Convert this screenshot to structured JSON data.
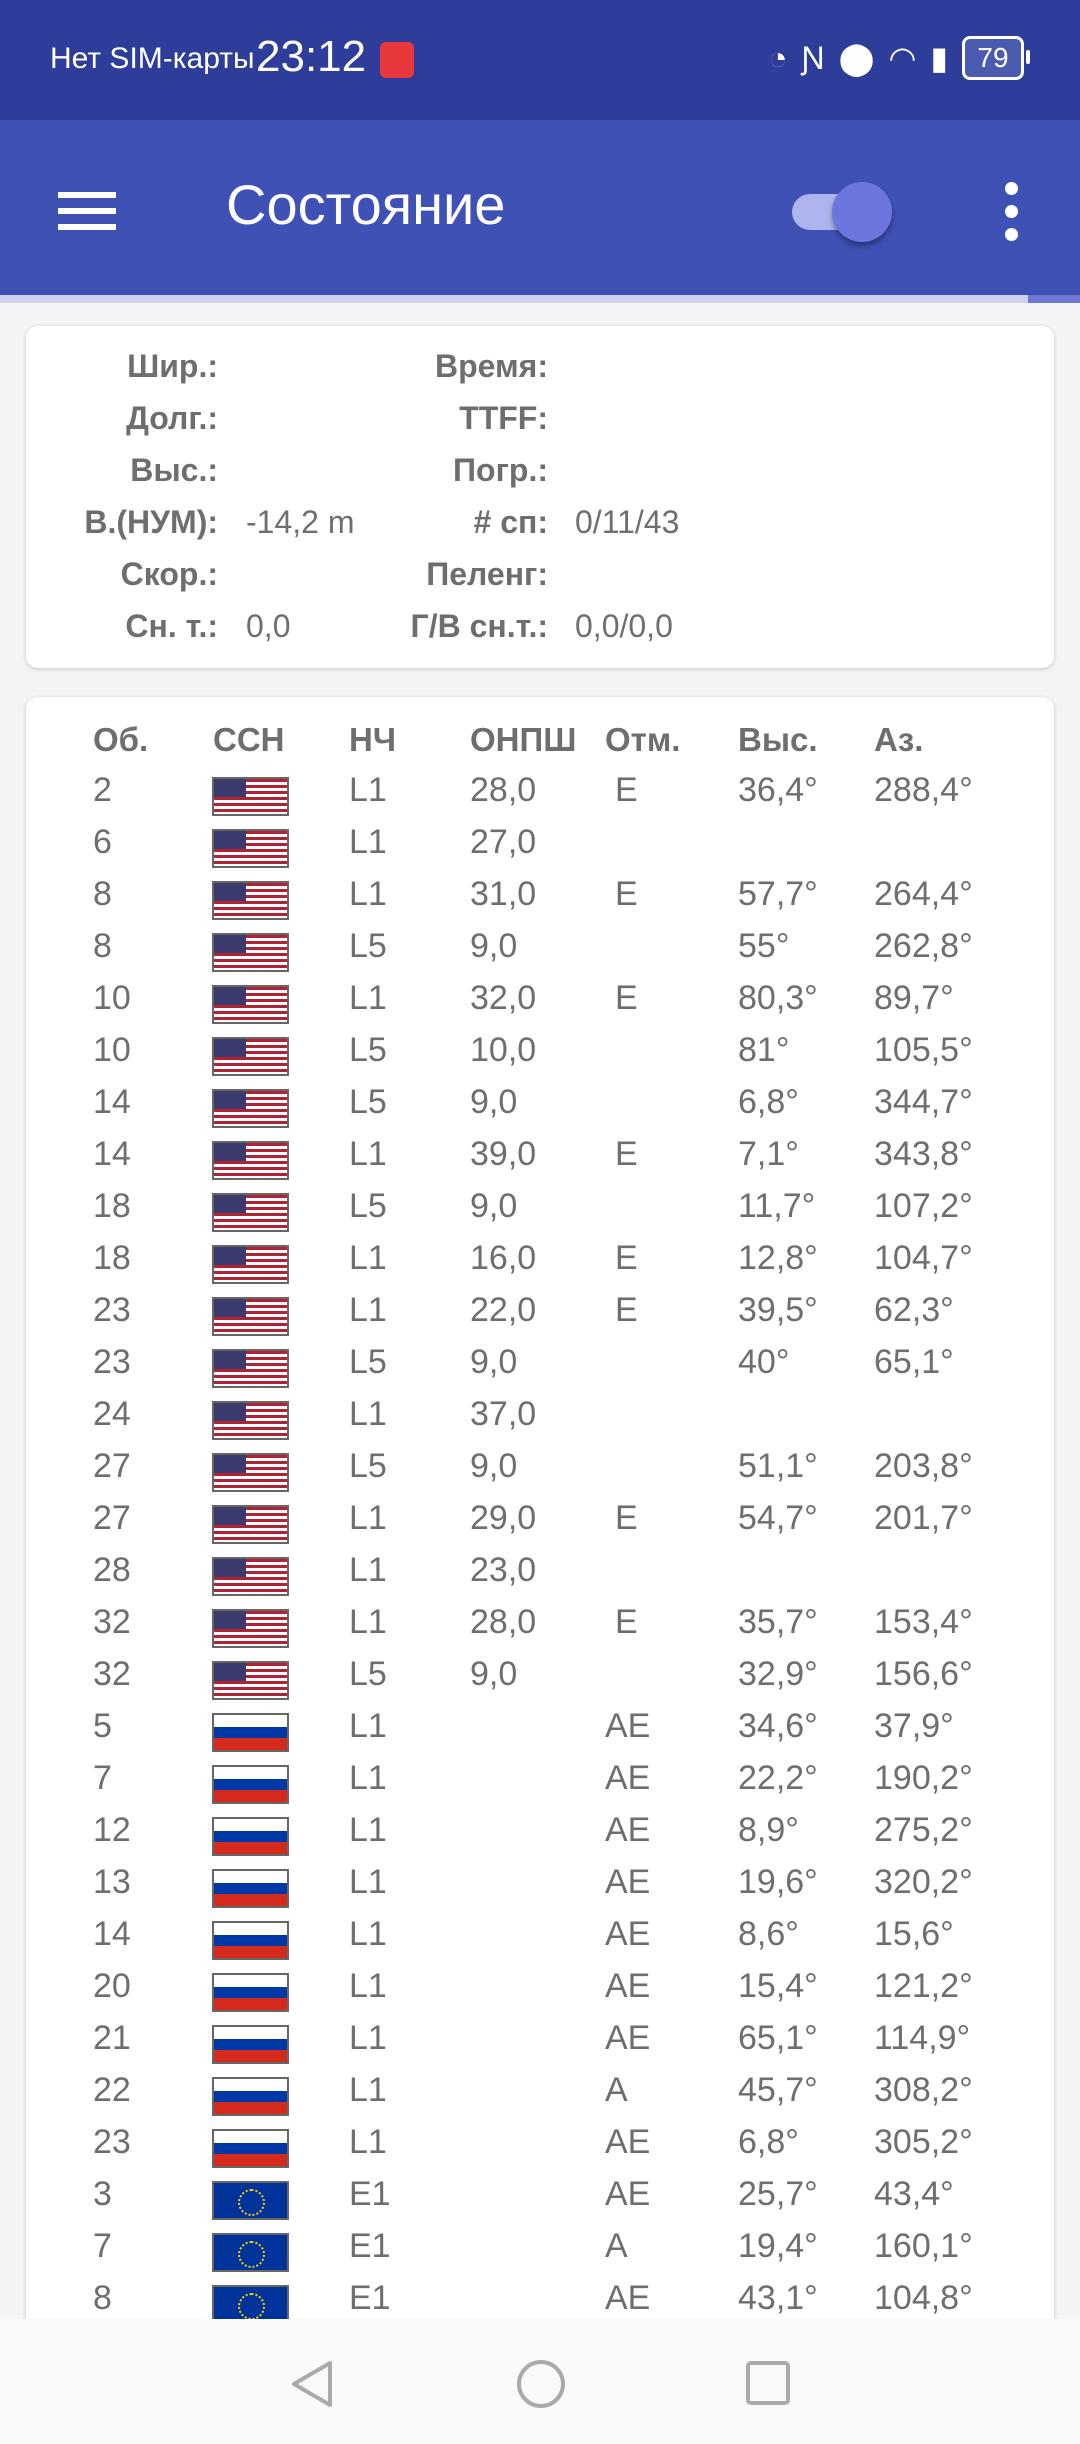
{
  "status_bar": {
    "carrier": "Нет SIM-карты",
    "time": "23:12",
    "battery": "79",
    "icons": [
      "huawei-app-icon",
      "speed-icon",
      "nfc-icon",
      "location-icon",
      "wifi-icon",
      "alert-icon",
      "battery-icon"
    ]
  },
  "toolbar": {
    "title": "Состояние",
    "toggle_on": true,
    "accent": "#3f51b5",
    "status_bar_color": "#2e3d9a"
  },
  "fix": {
    "left": [
      {
        "label": "Шир.:",
        "value": ""
      },
      {
        "label": "Долг.:",
        "value": ""
      },
      {
        "label": "Выс.:",
        "value": ""
      },
      {
        "label": "В.(НУМ):",
        "value": "-14,2 m"
      },
      {
        "label": "Скор.:",
        "value": ""
      },
      {
        "label": "Сн. т.:",
        "value": "0,0"
      }
    ],
    "right": [
      {
        "label": "Время:",
        "value": ""
      },
      {
        "label": "TTFF:",
        "value": ""
      },
      {
        "label": "Погр.:",
        "value": ""
      },
      {
        "label": "# сп:",
        "value": "0/11/43"
      },
      {
        "label": "Пеленг:",
        "value": ""
      },
      {
        "label": "Г/В сн.т.:",
        "value": "0,0/0,0"
      }
    ]
  },
  "table": {
    "headers": [
      "Об.",
      "ССН",
      "НЧ",
      "ОНПШ",
      "Отм.",
      "Выс.",
      "Аз."
    ],
    "rows": [
      [
        "2",
        "us",
        "L1",
        "28,0",
        "E",
        "36,4°",
        "288,4°"
      ],
      [
        "6",
        "us",
        "L1",
        "27,0",
        "",
        "",
        ""
      ],
      [
        "8",
        "us",
        "L1",
        "31,0",
        "E",
        "57,7°",
        "264,4°"
      ],
      [
        "8",
        "us",
        "L5",
        "9,0",
        "",
        "55°",
        "262,8°"
      ],
      [
        "10",
        "us",
        "L1",
        "32,0",
        "E",
        "80,3°",
        "89,7°"
      ],
      [
        "10",
        "us",
        "L5",
        "10,0",
        "",
        "81°",
        "105,5°"
      ],
      [
        "14",
        "us",
        "L5",
        "9,0",
        "",
        "6,8°",
        "344,7°"
      ],
      [
        "14",
        "us",
        "L1",
        "39,0",
        "E",
        "7,1°",
        "343,8°"
      ],
      [
        "18",
        "us",
        "L5",
        "9,0",
        "",
        "11,7°",
        "107,2°"
      ],
      [
        "18",
        "us",
        "L1",
        "16,0",
        "E",
        "12,8°",
        "104,7°"
      ],
      [
        "23",
        "us",
        "L1",
        "22,0",
        "E",
        "39,5°",
        "62,3°"
      ],
      [
        "23",
        "us",
        "L5",
        "9,0",
        "",
        "40°",
        "65,1°"
      ],
      [
        "24",
        "us",
        "L1",
        "37,0",
        "",
        "",
        ""
      ],
      [
        "27",
        "us",
        "L5",
        "9,0",
        "",
        "51,1°",
        "203,8°"
      ],
      [
        "27",
        "us",
        "L1",
        "29,0",
        "E",
        "54,7°",
        "201,7°"
      ],
      [
        "28",
        "us",
        "L1",
        "23,0",
        "",
        "",
        ""
      ],
      [
        "32",
        "us",
        "L1",
        "28,0",
        "E",
        "35,7°",
        "153,4°"
      ],
      [
        "32",
        "us",
        "L5",
        "9,0",
        "",
        "32,9°",
        "156,6°"
      ],
      [
        "5",
        "ru",
        "L1",
        "",
        "AE",
        "34,6°",
        "37,9°"
      ],
      [
        "7",
        "ru",
        "L1",
        "",
        "AE",
        "22,2°",
        "190,2°"
      ],
      [
        "12",
        "ru",
        "L1",
        "",
        "AE",
        "8,9°",
        "275,2°"
      ],
      [
        "13",
        "ru",
        "L1",
        "",
        "AE",
        "19,6°",
        "320,2°"
      ],
      [
        "14",
        "ru",
        "L1",
        "",
        "AE",
        "8,6°",
        "15,6°"
      ],
      [
        "20",
        "ru",
        "L1",
        "",
        "AE",
        "15,4°",
        "121,2°"
      ],
      [
        "21",
        "ru",
        "L1",
        "",
        "AE",
        "65,1°",
        "114,9°"
      ],
      [
        "22",
        "ru",
        "L1",
        "",
        "A",
        "45,7°",
        "308,2°"
      ],
      [
        "23",
        "ru",
        "L1",
        "",
        "AE",
        "6,8°",
        "305,2°"
      ],
      [
        "3",
        "eu",
        "E1",
        "",
        "AE",
        "25,7°",
        "43,4°"
      ],
      [
        "7",
        "eu",
        "E1",
        "",
        "A",
        "19,4°",
        "160,1°"
      ],
      [
        "8",
        "eu",
        "E1",
        "",
        "AE",
        "43,1°",
        "104,8°"
      ]
    ]
  },
  "nav": {
    "buttons": [
      "back",
      "home",
      "recents"
    ]
  }
}
